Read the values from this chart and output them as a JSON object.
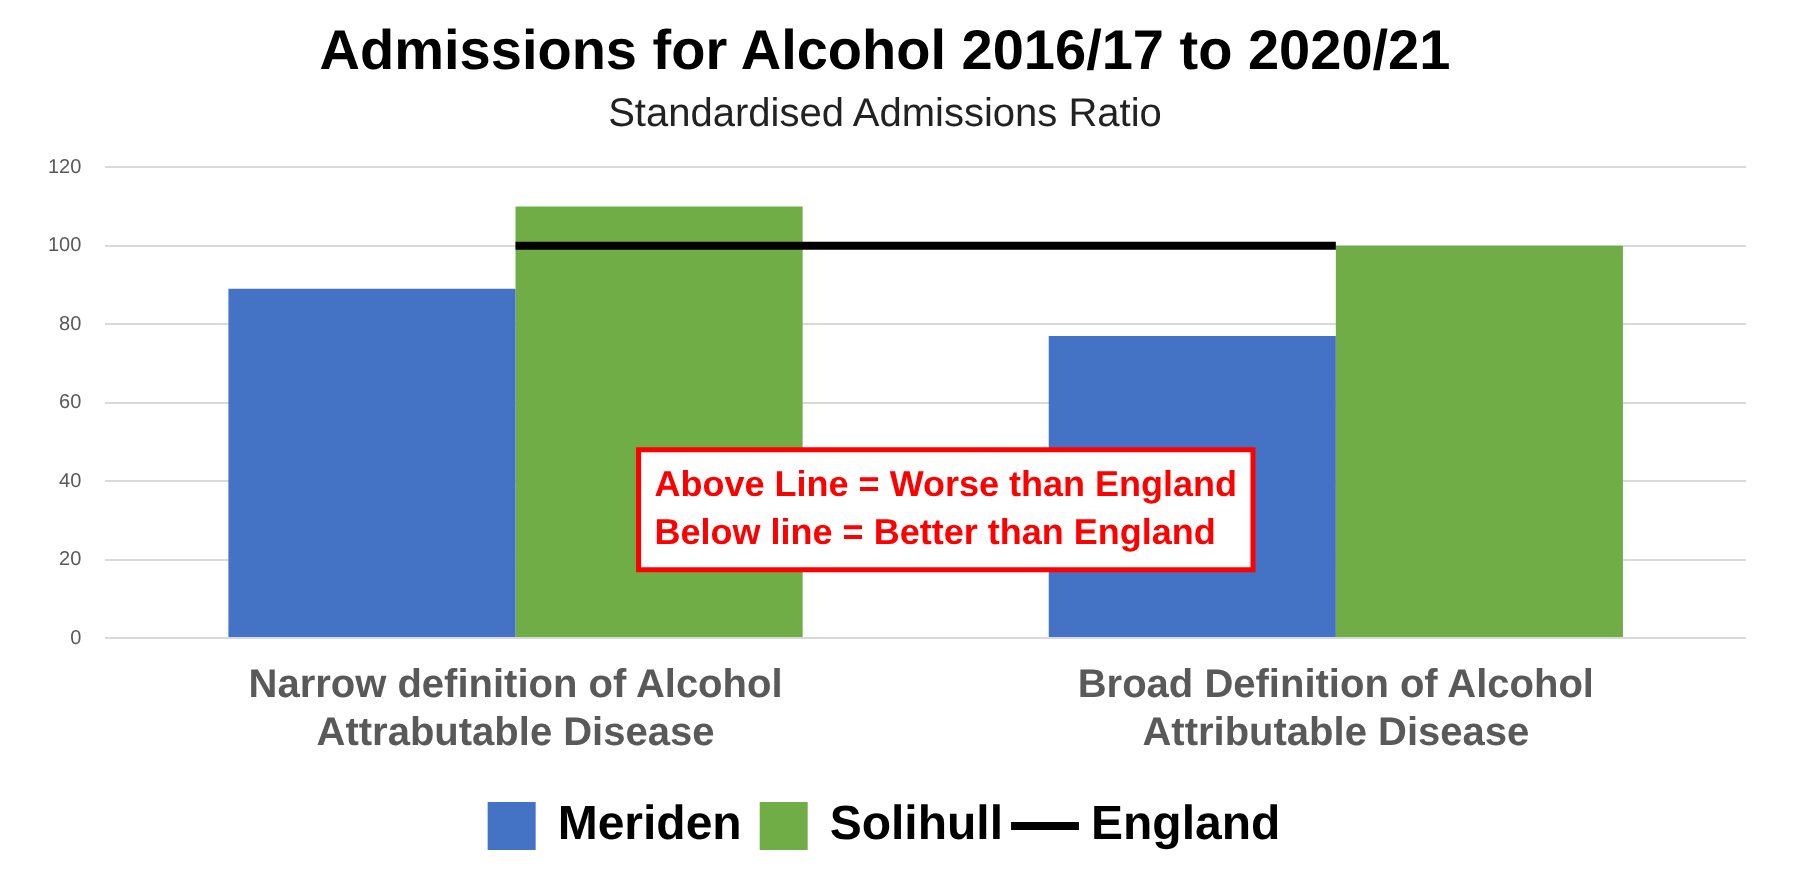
{
  "chart_data": {
    "type": "bar",
    "title": "Admissions for Alcohol 2016/17 to 2020/21",
    "subtitle": "Standardised Admissions Ratio",
    "categories": [
      "Narrow definition of Alcohol Attrabutable Disease",
      "Broad Definition of Alcohol Attributable Disease"
    ],
    "series": [
      {
        "name": "Meriden",
        "color": "#4472c4",
        "values": [
          89,
          77
        ]
      },
      {
        "name": "Solihull",
        "color": "#70ad47",
        "values": [
          110,
          100
        ]
      },
      {
        "name": "England",
        "type": "line",
        "color": "#000000",
        "values": [
          100,
          100
        ],
        "marker": "none"
      }
    ],
    "ylim": [
      0,
      120
    ],
    "yticks": [
      0,
      20,
      40,
      60,
      80,
      100,
      120
    ],
    "grid": "y",
    "legend": "bottom",
    "annotations": [
      "Above Line = Worse than England",
      "Below line = Better than England"
    ]
  }
}
